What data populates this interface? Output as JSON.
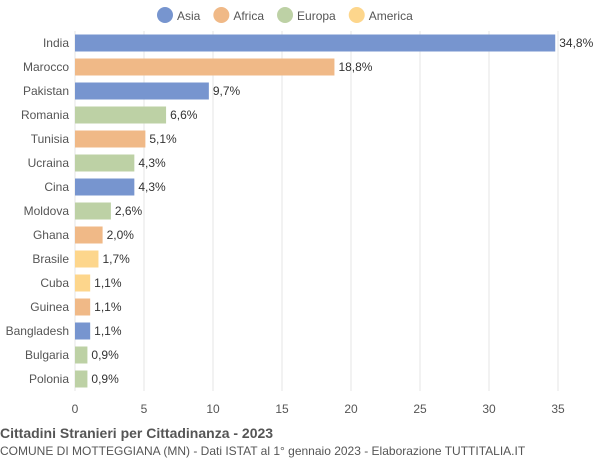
{
  "chart_data": {
    "type": "bar",
    "orientation": "horizontal",
    "title": "Cittadini Stranieri per Cittadinanza - 2023",
    "subtitle": "COMUNE DI MOTTEGGIANA (MN) - Dati ISTAT al 1° gennaio 2023 - Elaborazione TUTTITALIA.IT",
    "legend": {
      "placement": "top-center",
      "items": [
        {
          "name": "Asia",
          "color": "#7795cf"
        },
        {
          "name": "Africa",
          "color": "#f0b987"
        },
        {
          "name": "Europa",
          "color": "#bdd1a5"
        },
        {
          "name": "America",
          "color": "#fdd68c"
        }
      ]
    },
    "categories": [
      "India",
      "Marocco",
      "Pakistan",
      "Romania",
      "Tunisia",
      "Ucraina",
      "Cina",
      "Moldova",
      "Ghana",
      "Brasile",
      "Cuba",
      "Guinea",
      "Bangladesh",
      "Bulgaria",
      "Polonia"
    ],
    "values": [
      34.8,
      18.8,
      9.7,
      6.6,
      5.1,
      4.3,
      4.3,
      2.6,
      2.0,
      1.7,
      1.1,
      1.1,
      1.1,
      0.9,
      0.9
    ],
    "value_labels": [
      "34,8%",
      "18,8%",
      "9,7%",
      "6,6%",
      "5,1%",
      "4,3%",
      "4,3%",
      "2,6%",
      "2,0%",
      "1,7%",
      "1,1%",
      "1,1%",
      "1,1%",
      "0,9%",
      "0,9%"
    ],
    "continents": [
      "Asia",
      "Africa",
      "Asia",
      "Europa",
      "Africa",
      "Europa",
      "Asia",
      "Europa",
      "Africa",
      "America",
      "America",
      "Africa",
      "Asia",
      "Europa",
      "Europa"
    ],
    "xlim": [
      0,
      35
    ],
    "xticks": [
      0,
      5,
      10,
      15,
      20,
      25,
      30,
      35
    ],
    "grid": true
  }
}
